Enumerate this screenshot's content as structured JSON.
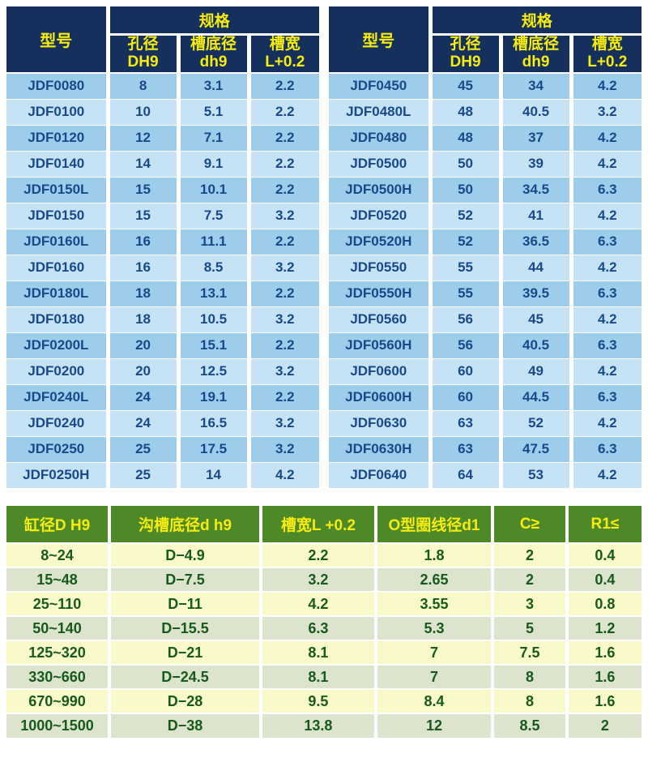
{
  "colors": {
    "header_navy": "#16305e",
    "header_yellow": "#f6ec0d",
    "row_blue_dark": "#9ecdec",
    "row_blue_light": "#c6e3f6",
    "text_blue": "#17498c",
    "header_green": "#4e8927",
    "row_pale_yellow": "#f9f9c9",
    "row_sage": "#dce4cd",
    "text_green": "#175a1e"
  },
  "left_table": {
    "model_header": "型号",
    "spec_header": "规格",
    "sub_headers": [
      "孔径\nDH9",
      "槽底径\ndh9",
      "槽宽\nL+0.2"
    ],
    "rows": [
      [
        "JDF0080",
        "8",
        "3.1",
        "2.2"
      ],
      [
        "JDF0100",
        "10",
        "5.1",
        "2.2"
      ],
      [
        "JDF0120",
        "12",
        "7.1",
        "2.2"
      ],
      [
        "JDF0140",
        "14",
        "9.1",
        "2.2"
      ],
      [
        "JDF0150L",
        "15",
        "10.1",
        "2.2"
      ],
      [
        "JDF0150",
        "15",
        "7.5",
        "3.2"
      ],
      [
        "JDF0160L",
        "16",
        "11.1",
        "2.2"
      ],
      [
        "JDF0160",
        "16",
        "8.5",
        "3.2"
      ],
      [
        "JDF0180L",
        "18",
        "13.1",
        "2.2"
      ],
      [
        "JDF0180",
        "18",
        "10.5",
        "3.2"
      ],
      [
        "JDF0200L",
        "20",
        "15.1",
        "2.2"
      ],
      [
        "JDF0200",
        "20",
        "12.5",
        "3.2"
      ],
      [
        "JDF0240L",
        "24",
        "19.1",
        "2.2"
      ],
      [
        "JDF0240",
        "24",
        "16.5",
        "3.2"
      ],
      [
        "JDF0250",
        "25",
        "17.5",
        "3.2"
      ],
      [
        "JDF0250H",
        "25",
        "14",
        "4.2"
      ]
    ]
  },
  "right_table": {
    "model_header": "型号",
    "spec_header": "规格",
    "sub_headers": [
      "孔径\nDH9",
      "槽底径\ndh9",
      "槽宽\nL+0.2"
    ],
    "rows": [
      [
        "JDF0450",
        "45",
        "34",
        "4.2"
      ],
      [
        "JDF0480L",
        "48",
        "40.5",
        "3.2"
      ],
      [
        "JDF0480",
        "48",
        "37",
        "4.2"
      ],
      [
        "JDF0500",
        "50",
        "39",
        "4.2"
      ],
      [
        "JDF0500H",
        "50",
        "34.5",
        "6.3"
      ],
      [
        "JDF0520",
        "52",
        "41",
        "4.2"
      ],
      [
        "JDF0520H",
        "52",
        "36.5",
        "6.3"
      ],
      [
        "JDF0550",
        "55",
        "44",
        "4.2"
      ],
      [
        "JDF0550H",
        "55",
        "39.5",
        "6.3"
      ],
      [
        "JDF0560",
        "56",
        "45",
        "4.2"
      ],
      [
        "JDF0560H",
        "56",
        "40.5",
        "6.3"
      ],
      [
        "JDF0600",
        "60",
        "49",
        "4.2"
      ],
      [
        "JDF0600H",
        "60",
        "44.5",
        "6.3"
      ],
      [
        "JDF0630",
        "63",
        "52",
        "4.2"
      ],
      [
        "JDF0630H",
        "63",
        "47.5",
        "6.3"
      ],
      [
        "JDF0640",
        "64",
        "53",
        "4.2"
      ]
    ]
  },
  "bottom_table": {
    "headers": [
      "缸径D H9",
      "沟槽底径d h9",
      "槽宽L +0.2",
      "O型圈线径d1",
      "C≥",
      "R1≤"
    ],
    "rows": [
      [
        "8~24",
        "D−4.9",
        "2.2",
        "1.8",
        "2",
        "0.4"
      ],
      [
        "15~48",
        "D−7.5",
        "3.2",
        "2.65",
        "2",
        "0.4"
      ],
      [
        "25~110",
        "D−11",
        "4.2",
        "3.55",
        "3",
        "0.8"
      ],
      [
        "50~140",
        "D−15.5",
        "6.3",
        "5.3",
        "5",
        "1.2"
      ],
      [
        "125~320",
        "D−21",
        "8.1",
        "7",
        "7.5",
        "1.6"
      ],
      [
        "330~660",
        "D−24.5",
        "8.1",
        "7",
        "8",
        "1.6"
      ],
      [
        "670~990",
        "D−28",
        "9.5",
        "8.4",
        "8",
        "1.6"
      ],
      [
        "1000~1500",
        "D−38",
        "13.8",
        "12",
        "8.5",
        "2"
      ]
    ]
  }
}
